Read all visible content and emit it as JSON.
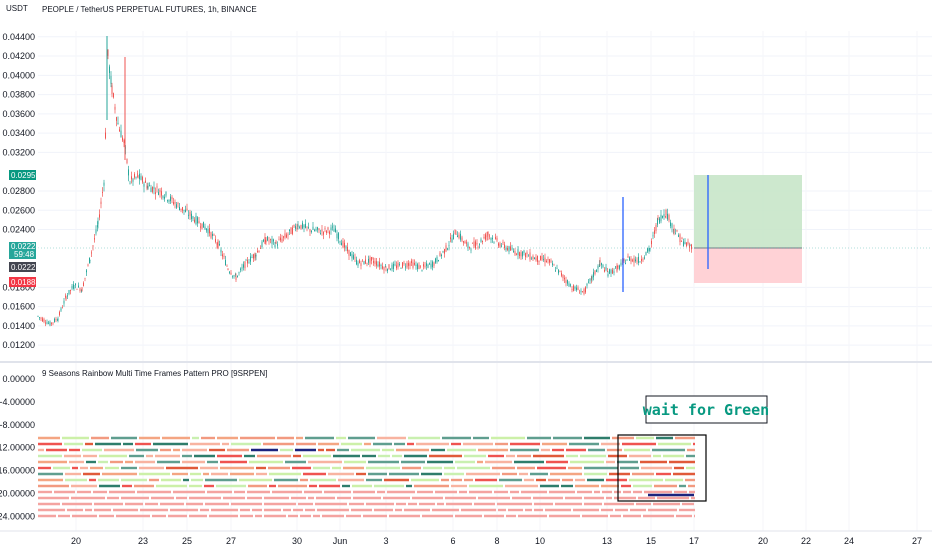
{
  "header": {
    "currency": "USDT",
    "symbol_title": "PEOPLE / TetherUS PERPETUAL FUTURES, 1h, BINANCE",
    "indicator_title": "9 Seasons Rainbow Multi Time Frames Pattern PRO [9SRPEN]"
  },
  "price_axis": {
    "ticks": [
      "0.04400",
      "0.04200",
      "0.04000",
      "0.03800",
      "0.03600",
      "0.03400",
      "0.03200",
      "0.02800",
      "0.02600",
      "0.02400",
      "0.01800",
      "0.01600",
      "0.01400",
      "0.01200"
    ]
  },
  "badges": {
    "target": "0.02959",
    "current": "0.02228",
    "countdown": "59:48",
    "entry": "0.02221",
    "stop": "0.01883"
  },
  "indicator_axis": {
    "ticks": [
      "0.00000",
      "-4.00000",
      "-8.00000",
      "-12.00000",
      "-16.00000",
      "-20.00000",
      "-24.00000"
    ]
  },
  "time_axis": {
    "labels": [
      "20",
      "23",
      "25",
      "27",
      "30",
      "Jun",
      "3",
      "6",
      "8",
      "10",
      "13",
      "15",
      "17",
      "20",
      "22",
      "24",
      "27"
    ]
  },
  "annotation": {
    "text": "wait for Green"
  },
  "colors": {
    "up": "#26a69a",
    "down": "#ef5350",
    "target_zone": "#c8e6c9",
    "stop_zone": "#ffcdd2",
    "note_text": "#089981",
    "current_price_line": "#26a69a"
  },
  "price_range": [
    0.0115,
    0.0446
  ]
}
